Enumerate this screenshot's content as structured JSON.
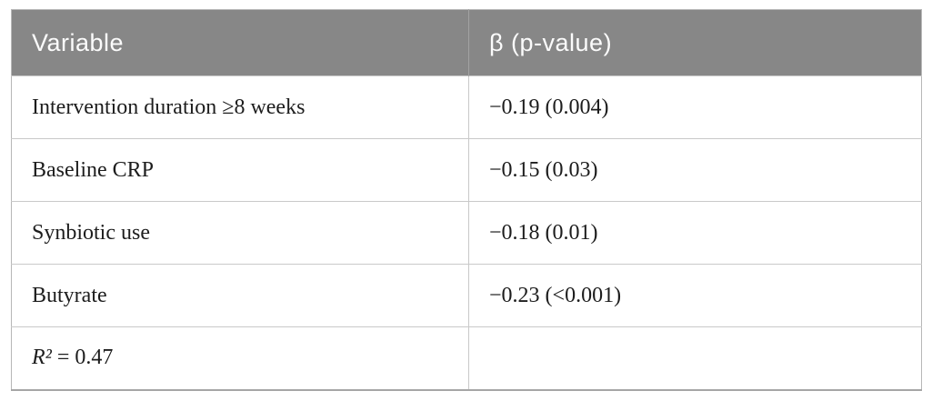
{
  "table": {
    "columns": [
      {
        "label": "Variable"
      },
      {
        "label": "β (p-value)"
      }
    ],
    "rows": [
      {
        "variable": "Intervention duration ≥8 weeks",
        "beta": "−0.19 (0.004)"
      },
      {
        "variable": "Baseline CRP",
        "beta": "−0.15 (0.03)"
      },
      {
        "variable": "Synbiotic use",
        "beta": "−0.18 (0.01)"
      },
      {
        "variable": "Butyrate",
        "beta": "−0.23 (<0.001)"
      }
    ],
    "footer_row": {
      "symbol": "R²",
      "rest": " = 0.47",
      "beta": ""
    },
    "colors": {
      "header_bg": "#878787",
      "header_text": "#fbfbfb",
      "body_text": "#1d1d1d",
      "grid_line": "#c9c9c9",
      "outer_border": "#b7b7b7"
    }
  }
}
